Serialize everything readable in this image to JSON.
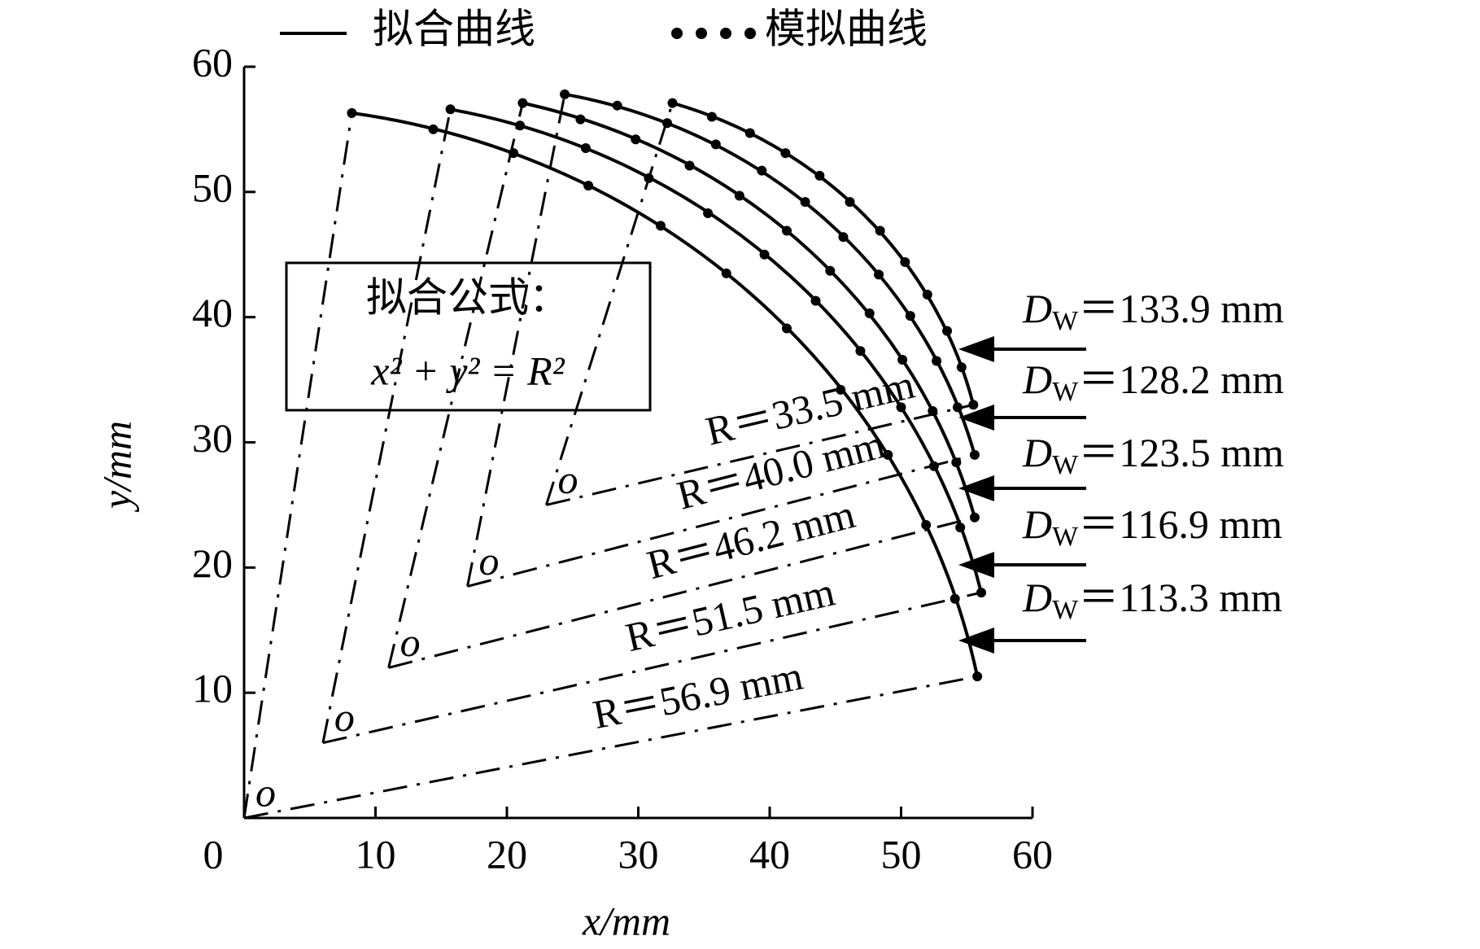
{
  "chart_data": {
    "type": "scatter",
    "legend": [
      "拟合曲线",
      "模拟曲线"
    ],
    "line_color": "#000000",
    "dot_color": "#000000",
    "x_label": "x/mm",
    "y_label": "y/mm",
    "xlim": [
      0,
      60
    ],
    "ylim": [
      0,
      60
    ],
    "xticks": [
      0,
      10,
      20,
      30,
      40,
      50,
      60
    ],
    "yticks": [
      10,
      20,
      30,
      40,
      50,
      60
    ],
    "formula_title": "拟合公式：",
    "formula": "x² + y² = R²",
    "fitted": [
      {
        "R": 56.9,
        "label": "R＝56.9 mm",
        "center": [
          0,
          0
        ],
        "center_label": "o"
      },
      {
        "R": 51.5,
        "label": "R＝51.5 mm",
        "center": [
          6,
          6
        ],
        "center_label": "o"
      },
      {
        "R": 46.2,
        "label": "R＝46.2 mm",
        "center": [
          11,
          12
        ],
        "center_label": "o"
      },
      {
        "R": 40.0,
        "label": "R＝40.0 mm",
        "center": [
          17,
          18.5
        ],
        "center_label": "o"
      },
      {
        "R": 33.5,
        "label": "R＝33.5 mm",
        "center": [
          23,
          25
        ],
        "center_label": "o"
      }
    ],
    "simulated": [
      {
        "x": [
          8.2,
          14.4,
          20.5,
          26.2,
          31.7,
          36.7,
          41.3,
          45.4,
          49.0,
          51.9,
          54.1,
          55.8
        ],
        "y": [
          56.3,
          55.0,
          53.1,
          50.5,
          47.3,
          43.5,
          39.1,
          34.2,
          29.0,
          23.4,
          17.5,
          11.3
        ]
      },
      {
        "x": [
          15.7,
          21.0,
          26.0,
          30.8,
          35.3,
          39.6,
          43.5,
          46.9,
          50.0,
          52.5,
          54.5,
          56.1
        ],
        "y": [
          56.6,
          55.3,
          53.5,
          51.1,
          48.3,
          45.0,
          41.3,
          37.3,
          32.8,
          28.1,
          23.2,
          18.0
        ]
      },
      {
        "x": [
          21.2,
          25.6,
          29.8,
          33.9,
          37.7,
          41.3,
          44.6,
          47.6,
          50.1,
          52.4,
          54.2,
          55.6
        ],
        "y": [
          57.1,
          55.8,
          54.2,
          52.1,
          49.7,
          46.9,
          43.7,
          40.3,
          36.6,
          32.5,
          28.4,
          24.0
        ]
      },
      {
        "x": [
          24.4,
          28.4,
          32.2,
          35.9,
          39.4,
          42.7,
          45.6,
          48.3,
          50.7,
          52.7,
          54.3,
          55.6
        ],
        "y": [
          57.8,
          56.9,
          55.5,
          53.8,
          51.7,
          49.2,
          46.4,
          43.4,
          40.1,
          36.5,
          32.8,
          29.0
        ]
      },
      {
        "x": [
          32.6,
          35.6,
          38.5,
          41.2,
          43.8,
          46.1,
          48.4,
          50.3,
          52.0,
          53.5,
          54.6,
          55.5
        ],
        "y": [
          57.1,
          56.0,
          54.7,
          53.1,
          51.3,
          49.2,
          46.9,
          44.4,
          41.8,
          38.9,
          36.0,
          33.0
        ]
      }
    ],
    "dw_labels": [
      {
        "symbol": "D",
        "subscript": "W",
        "text": "＝133.9 mm"
      },
      {
        "symbol": "D",
        "subscript": "W",
        "text": "＝128.2 mm"
      },
      {
        "symbol": "D",
        "subscript": "W",
        "text": "＝123.5 mm"
      },
      {
        "symbol": "D",
        "subscript": "W",
        "text": "＝116.9 mm"
      },
      {
        "symbol": "D",
        "subscript": "W",
        "text": "＝113.3 mm"
      }
    ]
  }
}
